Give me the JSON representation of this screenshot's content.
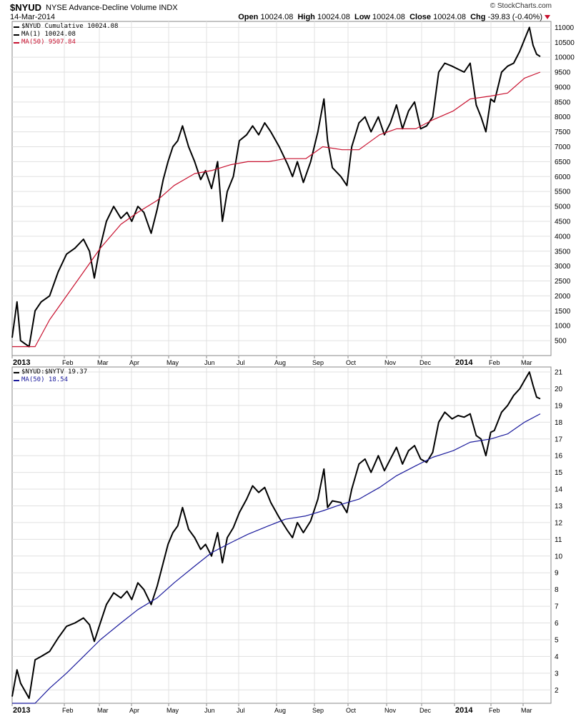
{
  "header": {
    "symbol": "$NYUD",
    "name": "NYSE Advance-Decline Volume INDX",
    "date": "14-Mar-2014",
    "logo": "© StockCharts.com",
    "open_label": "Open",
    "open": "10024.08",
    "high_label": "High",
    "high": "10024.08",
    "low_label": "Low",
    "low": "10024.08",
    "close_label": "Close",
    "close": "10024.08",
    "chg_label": "Chg",
    "chg": "-39.83 (-0.40%)"
  },
  "colors": {
    "price": "#000000",
    "ma_top": "#c8102e",
    "ma_bottom": "#1a1a9c",
    "grid": "#e0e0e0"
  },
  "legend_top": [
    {
      "text": "$NYUD Cumulative 10024.08",
      "color": "#000000"
    },
    {
      "text": "MA(1) 10024.08",
      "color": "#000000"
    },
    {
      "text": "MA(50) 9507.84",
      "color": "#c8102e"
    }
  ],
  "legend_bottom": [
    {
      "text": "$NYUD:$NYTV 19.37",
      "color": "#000000"
    },
    {
      "text": "MA(50) 18.54",
      "color": "#1a1a9c"
    }
  ],
  "chart_data": [
    {
      "type": "line",
      "title": "$NYUD Cumulative",
      "x_range": [
        "2013-01-01",
        "2014-03-14"
      ],
      "x_tick_labels": [
        "2013",
        "Feb",
        "Mar",
        "Apr",
        "May",
        "Jun",
        "Jul",
        "Aug",
        "Sep",
        "Oct",
        "Nov",
        "Dec",
        "2014",
        "Feb",
        "Mar"
      ],
      "ylim": [
        0,
        11200
      ],
      "y_ticks": [
        500,
        1000,
        1500,
        2000,
        2500,
        3000,
        3500,
        4000,
        4500,
        5000,
        5500,
        6000,
        6500,
        7000,
        7500,
        8000,
        8500,
        9000,
        9500,
        10000,
        10500,
        11000
      ],
      "grid": true,
      "series": [
        {
          "name": "$NYUD Cumulative",
          "x": [
            "2013-01-01",
            "2013-01-05",
            "2013-01-08",
            "2013-01-15",
            "2013-01-20",
            "2013-01-25",
            "2013-02-01",
            "2013-02-08",
            "2013-02-15",
            "2013-02-22",
            "2013-03-01",
            "2013-03-06",
            "2013-03-10",
            "2013-03-14",
            "2013-03-20",
            "2013-03-26",
            "2013-04-01",
            "2013-04-06",
            "2013-04-10",
            "2013-04-15",
            "2013-04-20",
            "2013-04-26",
            "2013-05-01",
            "2013-05-06",
            "2013-05-10",
            "2013-05-14",
            "2013-05-18",
            "2013-05-22",
            "2013-05-27",
            "2013-06-01",
            "2013-06-06",
            "2013-06-10",
            "2013-06-15",
            "2013-06-20",
            "2013-06-24",
            "2013-06-28",
            "2013-07-03",
            "2013-07-08",
            "2013-07-14",
            "2013-07-19",
            "2013-07-24",
            "2013-07-29",
            "2013-08-03",
            "2013-08-10",
            "2013-08-17",
            "2013-08-21",
            "2013-08-25",
            "2013-08-30",
            "2013-09-05",
            "2013-09-11",
            "2013-09-16",
            "2013-09-19",
            "2013-09-23",
            "2013-09-30",
            "2013-10-05",
            "2013-10-09",
            "2013-10-15",
            "2013-10-20",
            "2013-10-25",
            "2013-10-31",
            "2013-11-05",
            "2013-11-10",
            "2013-11-15",
            "2013-11-20",
            "2013-11-25",
            "2013-11-30",
            "2013-12-05",
            "2013-12-10",
            "2013-12-15",
            "2013-12-20",
            "2013-12-25",
            "2013-12-31",
            "2014-01-05",
            "2014-01-10",
            "2014-01-15",
            "2014-01-20",
            "2014-01-24",
            "2014-01-28",
            "2014-02-01",
            "2014-02-04",
            "2014-02-10",
            "2014-02-15",
            "2014-02-20",
            "2014-02-25",
            "2014-03-01",
            "2014-03-05",
            "2014-03-08",
            "2014-03-11",
            "2014-03-14"
          ],
          "y": [
            600,
            1800,
            500,
            300,
            1500,
            1800,
            2000,
            2800,
            3400,
            3600,
            3900,
            3500,
            2600,
            3500,
            4500,
            5000,
            4600,
            4800,
            4500,
            5000,
            4800,
            4100,
            4900,
            5900,
            6500,
            7000,
            7200,
            7700,
            7000,
            6500,
            5900,
            6200,
            5600,
            6500,
            4500,
            5500,
            6000,
            7200,
            7400,
            7700,
            7400,
            7800,
            7500,
            7000,
            6400,
            6000,
            6500,
            5800,
            6500,
            7500,
            8600,
            7200,
            6300,
            6000,
            5700,
            7000,
            7800,
            8000,
            7500,
            8000,
            7400,
            7800,
            8400,
            7600,
            8200,
            8500,
            7600,
            7700,
            8000,
            9500,
            9800,
            9700,
            9600,
            9500,
            9800,
            8400,
            8000,
            7500,
            8600,
            8500,
            9500,
            9700,
            9800,
            10200,
            10600,
            11000,
            10400,
            10100,
            10024
          ]
        },
        {
          "name": "MA(50)",
          "x": [
            "2013-01-01",
            "2013-01-20",
            "2013-02-01",
            "2013-02-15",
            "2013-03-01",
            "2013-03-15",
            "2013-04-01",
            "2013-04-15",
            "2013-05-01",
            "2013-05-15",
            "2013-06-01",
            "2013-06-15",
            "2013-07-01",
            "2013-07-15",
            "2013-08-01",
            "2013-08-15",
            "2013-09-01",
            "2013-09-15",
            "2013-10-01",
            "2013-10-15",
            "2013-11-01",
            "2013-11-15",
            "2013-12-01",
            "2013-12-15",
            "2014-01-01",
            "2014-01-15",
            "2014-02-01",
            "2014-02-15",
            "2014-03-01",
            "2014-03-14"
          ],
          "y": [
            300,
            300,
            1200,
            2000,
            2800,
            3600,
            4400,
            4800,
            5200,
            5700,
            6100,
            6200,
            6400,
            6500,
            6500,
            6600,
            6600,
            7000,
            6900,
            6900,
            7400,
            7600,
            7600,
            7900,
            8200,
            8600,
            8700,
            8800,
            9300,
            9500
          ]
        }
      ]
    },
    {
      "type": "line",
      "title": "$NYUD:$NYTV",
      "x_range": [
        "2013-01-01",
        "2014-03-14"
      ],
      "x_tick_labels": [
        "2013",
        "Feb",
        "Mar",
        "Apr",
        "May",
        "Jun",
        "Jul",
        "Aug",
        "Sep",
        "Oct",
        "Nov",
        "Dec",
        "2014",
        "Feb",
        "Mar"
      ],
      "ylim": [
        1.2,
        21.3
      ],
      "y_ticks": [
        2,
        3,
        4,
        5,
        6,
        7,
        8,
        9,
        10,
        11,
        12,
        13,
        14,
        15,
        16,
        17,
        18,
        19,
        20,
        21
      ],
      "grid": true,
      "series": [
        {
          "name": "$NYUD:$NYTV",
          "x": [
            "2013-01-01",
            "2013-01-05",
            "2013-01-08",
            "2013-01-15",
            "2013-01-20",
            "2013-01-25",
            "2013-02-01",
            "2013-02-08",
            "2013-02-15",
            "2013-02-22",
            "2013-03-01",
            "2013-03-06",
            "2013-03-10",
            "2013-03-14",
            "2013-03-20",
            "2013-03-26",
            "2013-04-01",
            "2013-04-06",
            "2013-04-10",
            "2013-04-15",
            "2013-04-20",
            "2013-04-26",
            "2013-05-01",
            "2013-05-06",
            "2013-05-10",
            "2013-05-14",
            "2013-05-18",
            "2013-05-22",
            "2013-05-27",
            "2013-06-01",
            "2013-06-06",
            "2013-06-10",
            "2013-06-15",
            "2013-06-20",
            "2013-06-24",
            "2013-06-28",
            "2013-07-03",
            "2013-07-08",
            "2013-07-14",
            "2013-07-19",
            "2013-07-24",
            "2013-07-29",
            "2013-08-03",
            "2013-08-10",
            "2013-08-17",
            "2013-08-21",
            "2013-08-25",
            "2013-08-30",
            "2013-09-05",
            "2013-09-11",
            "2013-09-16",
            "2013-09-19",
            "2013-09-23",
            "2013-09-30",
            "2013-10-05",
            "2013-10-09",
            "2013-10-15",
            "2013-10-20",
            "2013-10-25",
            "2013-10-31",
            "2013-11-05",
            "2013-11-10",
            "2013-11-15",
            "2013-11-20",
            "2013-11-25",
            "2013-11-30",
            "2013-12-05",
            "2013-12-10",
            "2013-12-15",
            "2013-12-20",
            "2013-12-25",
            "2013-12-31",
            "2014-01-05",
            "2014-01-10",
            "2014-01-15",
            "2014-01-20",
            "2014-01-24",
            "2014-01-28",
            "2014-02-01",
            "2014-02-04",
            "2014-02-10",
            "2014-02-15",
            "2014-02-20",
            "2014-02-25",
            "2014-03-01",
            "2014-03-05",
            "2014-03-08",
            "2014-03-11",
            "2014-03-14"
          ],
          "y": [
            1.6,
            3.2,
            2.4,
            1.5,
            3.8,
            4.0,
            4.3,
            5.1,
            5.8,
            6.0,
            6.3,
            5.9,
            4.9,
            5.8,
            7.1,
            7.8,
            7.5,
            7.9,
            7.4,
            8.4,
            8.0,
            7.1,
            8.2,
            9.6,
            10.7,
            11.4,
            11.8,
            12.9,
            11.6,
            11.1,
            10.4,
            10.7,
            10.0,
            11.4,
            9.6,
            11.1,
            11.7,
            12.6,
            13.4,
            14.2,
            13.8,
            14.1,
            13.2,
            12.3,
            11.5,
            11.1,
            12.0,
            11.4,
            12.1,
            13.4,
            15.2,
            12.9,
            13.3,
            13.2,
            12.6,
            14.0,
            15.5,
            15.8,
            15.0,
            16.0,
            15.1,
            15.8,
            16.5,
            15.5,
            16.3,
            16.6,
            15.8,
            15.6,
            16.2,
            18.0,
            18.6,
            18.2,
            18.4,
            18.3,
            18.5,
            17.2,
            17.0,
            16.0,
            17.4,
            17.5,
            18.6,
            19.0,
            19.6,
            20.0,
            20.5,
            21.0,
            20.2,
            19.5,
            19.4
          ]
        },
        {
          "name": "MA(50)",
          "x": [
            "2013-01-01",
            "2013-01-20",
            "2013-02-01",
            "2013-02-15",
            "2013-03-01",
            "2013-03-15",
            "2013-04-01",
            "2013-04-15",
            "2013-05-01",
            "2013-05-15",
            "2013-06-01",
            "2013-06-15",
            "2013-07-01",
            "2013-07-15",
            "2013-08-01",
            "2013-08-15",
            "2013-09-01",
            "2013-09-15",
            "2013-10-01",
            "2013-10-15",
            "2013-11-01",
            "2013-11-15",
            "2013-12-01",
            "2013-12-15",
            "2014-01-01",
            "2014-01-15",
            "2014-02-01",
            "2014-02-15",
            "2014-03-01",
            "2014-03-14"
          ],
          "y": [
            0.8,
            1.1,
            2.1,
            3.0,
            4.0,
            5.0,
            6.0,
            6.8,
            7.5,
            8.4,
            9.4,
            10.2,
            10.8,
            11.3,
            11.8,
            12.2,
            12.4,
            12.7,
            13.1,
            13.4,
            14.1,
            14.8,
            15.4,
            15.9,
            16.3,
            16.8,
            17.0,
            17.3,
            18.0,
            18.5
          ]
        }
      ]
    }
  ]
}
